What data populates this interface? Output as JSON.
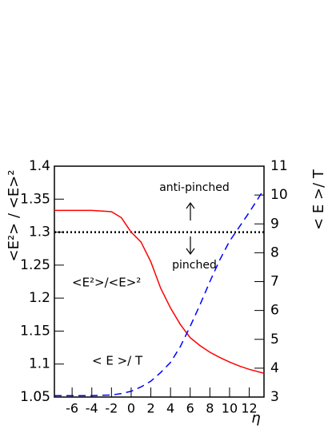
{
  "chart_data": {
    "type": "line",
    "x_label": "η",
    "y_label": "<E²> / <E>²",
    "y2_label": "< E >/ T",
    "x": [
      -7.8,
      -6,
      -4,
      -2,
      -1,
      0,
      1,
      2,
      3,
      4,
      5,
      6,
      7,
      8,
      9,
      10,
      11,
      12,
      13.5
    ],
    "series": [
      {
        "name": "<E²>/<E>²",
        "color": "#ff0000",
        "linestyle": "solid",
        "values": [
          1.333,
          1.333,
          1.333,
          1.331,
          1.322,
          1.3,
          1.285,
          1.255,
          1.215,
          1.185,
          1.16,
          1.14,
          1.128,
          1.118,
          1.11,
          1.103,
          1.097,
          1.092,
          1.086
        ]
      },
      {
        "name": "< E >/ T",
        "color": "#0000ff",
        "linestyle": "dashed",
        "axis": "y2",
        "values": [
          3.05,
          3.05,
          3.05,
          3.07,
          3.12,
          3.2,
          3.35,
          3.55,
          3.85,
          4.2,
          4.75,
          5.45,
          6.2,
          7.0,
          7.75,
          8.4,
          8.9,
          9.4,
          10.2
        ]
      }
    ],
    "hline": 1.3,
    "annotations": [
      "anti-pinched",
      "pinched"
    ],
    "xlim": [
      -7.8,
      13.5
    ],
    "xticks": [
      -6,
      -4,
      -2,
      0,
      2,
      4,
      6,
      8,
      10,
      12
    ],
    "ylim": [
      1.05,
      1.4
    ],
    "yticks": [
      1.05,
      1.1,
      1.15,
      1.2,
      1.25,
      1.3,
      1.35,
      1.4
    ],
    "y2lim": [
      3,
      11
    ],
    "y2ticks": [
      3,
      4,
      5,
      6,
      7,
      8,
      9,
      10,
      11
    ]
  }
}
